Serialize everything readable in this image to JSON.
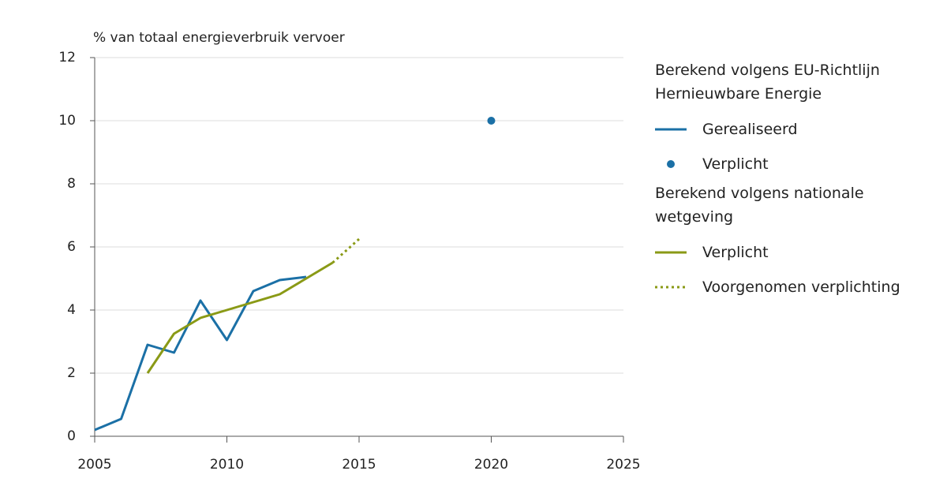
{
  "chart_data": {
    "type": "line",
    "ylabel": "% van totaal energieverbruik vervoer",
    "xlim": [
      2005,
      2025
    ],
    "xticks": [
      2005,
      2010,
      2015,
      2020,
      2025
    ],
    "ylim": [
      0,
      12
    ],
    "yticks": [
      0,
      2,
      4,
      6,
      8,
      10,
      12
    ],
    "grid": true,
    "legend_groups": [
      "Berekend volgens EU-Richtlijn Hernieuwbare Energie",
      "Berekend volgens nationale wetgeving"
    ],
    "series": [
      {
        "name": "Gerealiseerd",
        "color": "#1b70a6",
        "style": "solid",
        "group": 0,
        "x": [
          2005,
          2006,
          2007,
          2008,
          2009,
          2010,
          2011,
          2012,
          2013
        ],
        "values": [
          0.2,
          0.55,
          2.9,
          2.65,
          4.3,
          3.05,
          4.6,
          4.95,
          5.05
        ]
      },
      {
        "name": "Verplicht",
        "color": "#1b70a6",
        "style": "dot",
        "group": 0,
        "x": [
          2020
        ],
        "values": [
          10
        ]
      },
      {
        "name": "Verplicht",
        "color": "#8a9a16",
        "style": "solid",
        "group": 1,
        "x": [
          2007,
          2008,
          2009,
          2010,
          2011,
          2012,
          2013,
          2014
        ],
        "values": [
          2.0,
          3.25,
          3.75,
          4.0,
          4.25,
          4.5,
          5.0,
          5.5
        ]
      },
      {
        "name": "Voorgenomen verplichting",
        "color": "#8a9a16",
        "style": "dotted",
        "group": 1,
        "x": [
          2014,
          2015
        ],
        "values": [
          5.5,
          6.25
        ]
      }
    ]
  }
}
